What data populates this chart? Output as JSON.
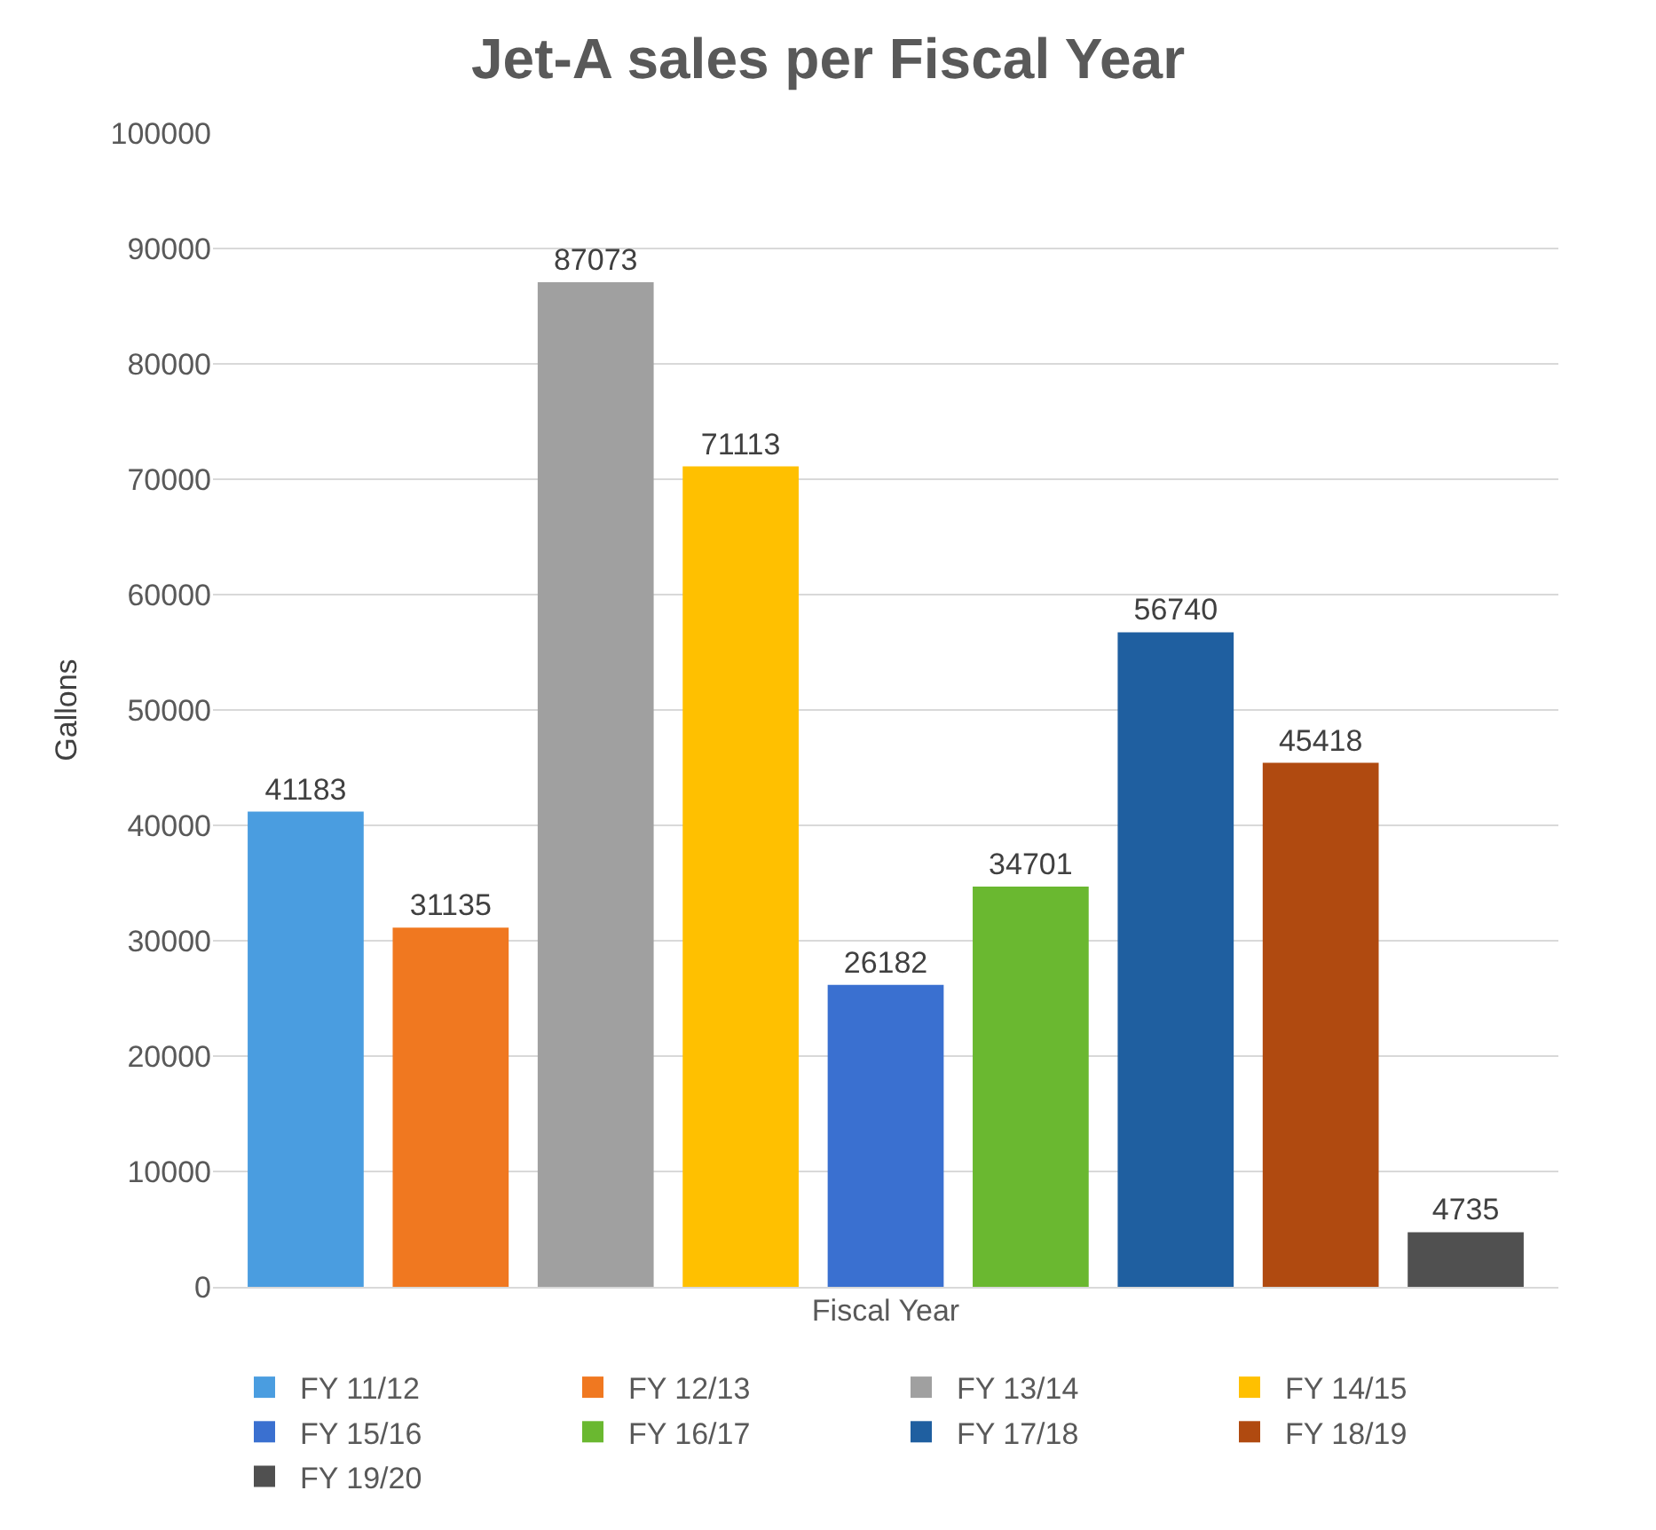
{
  "chart_data": {
    "type": "bar",
    "title": "Jet-A sales per Fiscal Year",
    "xlabel": "Fiscal Year",
    "ylabel": "Gallons",
    "categories": [
      null
    ],
    "series": [
      {
        "name": "FY 11/12",
        "color": "#4a9de0",
        "values": [
          41183
        ]
      },
      {
        "name": "FY 12/13",
        "color": "#f07820",
        "values": [
          31135
        ]
      },
      {
        "name": "FY 13/14",
        "color": "#a0a0a0",
        "values": [
          87073
        ]
      },
      {
        "name": "FY 14/15",
        "color": "#ffc000",
        "values": [
          71113
        ]
      },
      {
        "name": "FY 15/16",
        "color": "#3a70d0",
        "values": [
          26182
        ]
      },
      {
        "name": "FY 16/17",
        "color": "#6ab830",
        "values": [
          34701
        ]
      },
      {
        "name": "FY 17/18",
        "color": "#1f5fa0",
        "values": [
          56740
        ]
      },
      {
        "name": "FY 18/19",
        "color": "#b04a10",
        "values": [
          45418
        ]
      },
      {
        "name": "FY 19/20",
        "color": "#505050",
        "values": [
          4735
        ]
      }
    ],
    "ylim": [
      0,
      100000
    ],
    "yticks": [
      0,
      10000,
      20000,
      30000,
      40000,
      50000,
      60000,
      70000,
      80000,
      90000,
      100000
    ],
    "grid": "y",
    "legend": "bottom",
    "data_labels": true
  }
}
